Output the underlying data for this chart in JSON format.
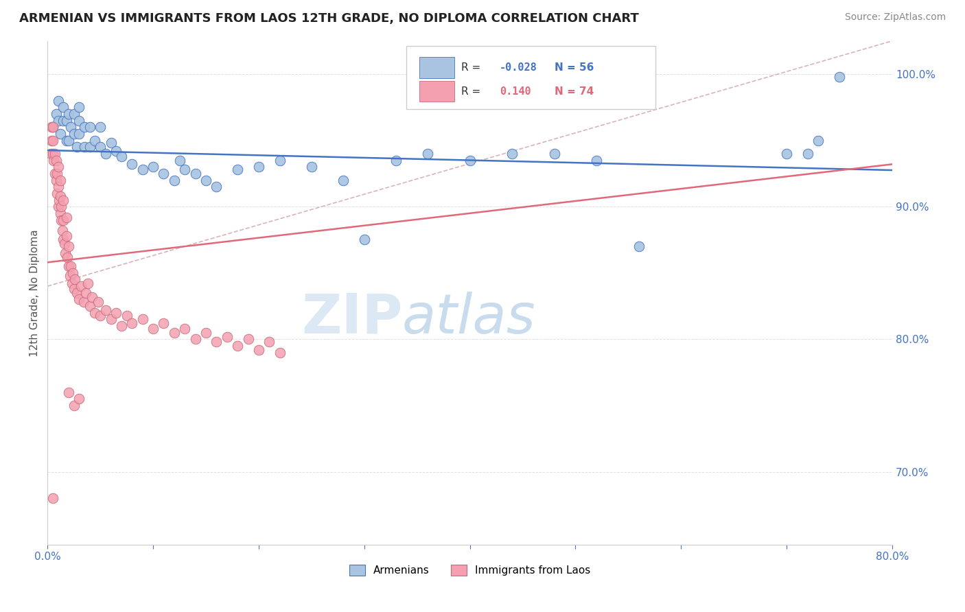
{
  "title": "ARMENIAN VS IMMIGRANTS FROM LAOS 12TH GRADE, NO DIPLOMA CORRELATION CHART",
  "source": "Source: ZipAtlas.com",
  "ylabel": "12th Grade, No Diploma",
  "xlim": [
    0.0,
    0.8
  ],
  "ylim": [
    0.645,
    1.025
  ],
  "xticks": [
    0.0,
    0.1,
    0.2,
    0.3,
    0.4,
    0.5,
    0.6,
    0.7,
    0.8
  ],
  "xticklabels": [
    "0.0%",
    "",
    "",
    "",
    "",
    "",
    "",
    "",
    "80.0%"
  ],
  "yticks_right": [
    0.7,
    0.8,
    0.9,
    1.0
  ],
  "yticklabels_right": [
    "70.0%",
    "80.0%",
    "90.0%",
    "100.0%"
  ],
  "legend_r_blue": "-0.028",
  "legend_n_blue": "56",
  "legend_r_pink": "0.140",
  "legend_n_pink": "74",
  "blue_color": "#a8c4e0",
  "pink_color": "#f4a0b0",
  "blue_line_color": "#4472c4",
  "pink_line_color": "#e06878",
  "blue_points_x": [
    0.005,
    0.008,
    0.01,
    0.01,
    0.012,
    0.015,
    0.015,
    0.018,
    0.018,
    0.02,
    0.02,
    0.022,
    0.025,
    0.025,
    0.028,
    0.03,
    0.03,
    0.03,
    0.035,
    0.035,
    0.04,
    0.04,
    0.045,
    0.05,
    0.05,
    0.055,
    0.06,
    0.065,
    0.07,
    0.08,
    0.09,
    0.1,
    0.11,
    0.12,
    0.125,
    0.13,
    0.14,
    0.15,
    0.16,
    0.18,
    0.2,
    0.22,
    0.25,
    0.28,
    0.3,
    0.33,
    0.36,
    0.4,
    0.44,
    0.48,
    0.52,
    0.56,
    0.7,
    0.72,
    0.73,
    0.75
  ],
  "blue_points_y": [
    0.96,
    0.97,
    0.965,
    0.98,
    0.955,
    0.965,
    0.975,
    0.95,
    0.965,
    0.95,
    0.97,
    0.96,
    0.955,
    0.97,
    0.945,
    0.955,
    0.965,
    0.975,
    0.945,
    0.96,
    0.945,
    0.96,
    0.95,
    0.945,
    0.96,
    0.94,
    0.948,
    0.942,
    0.938,
    0.932,
    0.928,
    0.93,
    0.925,
    0.92,
    0.935,
    0.928,
    0.925,
    0.92,
    0.915,
    0.928,
    0.93,
    0.935,
    0.93,
    0.92,
    0.875,
    0.935,
    0.94,
    0.935,
    0.94,
    0.94,
    0.935,
    0.87,
    0.94,
    0.94,
    0.95,
    0.998
  ],
  "pink_points_x": [
    0.003,
    0.004,
    0.004,
    0.005,
    0.005,
    0.005,
    0.006,
    0.007,
    0.007,
    0.008,
    0.008,
    0.009,
    0.009,
    0.01,
    0.01,
    0.01,
    0.011,
    0.012,
    0.012,
    0.012,
    0.013,
    0.013,
    0.014,
    0.015,
    0.015,
    0.015,
    0.016,
    0.017,
    0.018,
    0.018,
    0.019,
    0.02,
    0.02,
    0.021,
    0.022,
    0.023,
    0.024,
    0.025,
    0.026,
    0.028,
    0.03,
    0.032,
    0.034,
    0.036,
    0.038,
    0.04,
    0.042,
    0.045,
    0.048,
    0.05,
    0.055,
    0.06,
    0.065,
    0.07,
    0.075,
    0.08,
    0.09,
    0.1,
    0.11,
    0.12,
    0.13,
    0.14,
    0.15,
    0.16,
    0.17,
    0.18,
    0.19,
    0.2,
    0.21,
    0.22,
    0.02,
    0.025,
    0.03,
    0.005
  ],
  "pink_points_y": [
    0.94,
    0.95,
    0.96,
    0.94,
    0.95,
    0.96,
    0.935,
    0.925,
    0.94,
    0.92,
    0.935,
    0.91,
    0.925,
    0.9,
    0.915,
    0.93,
    0.905,
    0.895,
    0.908,
    0.92,
    0.89,
    0.9,
    0.882,
    0.875,
    0.89,
    0.905,
    0.872,
    0.865,
    0.878,
    0.892,
    0.862,
    0.855,
    0.87,
    0.848,
    0.855,
    0.842,
    0.85,
    0.838,
    0.845,
    0.835,
    0.83,
    0.84,
    0.828,
    0.835,
    0.842,
    0.825,
    0.832,
    0.82,
    0.828,
    0.818,
    0.822,
    0.815,
    0.82,
    0.81,
    0.818,
    0.812,
    0.815,
    0.808,
    0.812,
    0.805,
    0.808,
    0.8,
    0.805,
    0.798,
    0.802,
    0.795,
    0.8,
    0.792,
    0.798,
    0.79,
    0.76,
    0.75,
    0.755,
    0.68
  ],
  "blue_trend": [
    0.9425,
    0.9275
  ],
  "pink_trend": [
    0.858,
    0.932
  ],
  "dashed_line": [
    [
      0.0,
      0.84
    ],
    [
      0.8,
      1.025
    ]
  ],
  "dashed_color": "#d0a0a8"
}
